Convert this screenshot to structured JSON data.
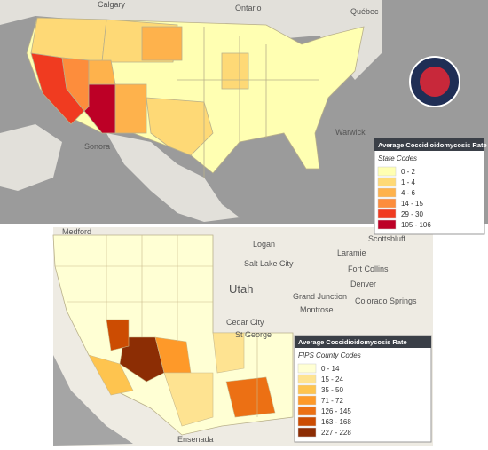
{
  "national_map": {
    "places": [
      "Calgary",
      "Ontario",
      "Québec",
      "Warwick",
      "Sonora"
    ],
    "legend": {
      "title": "Average Coccidioidomycosis Rate",
      "subtitle": "State Codes",
      "items": [
        {
          "label": "0 - 2",
          "color": "#ffffb2"
        },
        {
          "label": "1 - 4",
          "color": "#fed976"
        },
        {
          "label": "4 - 6",
          "color": "#feb24c"
        },
        {
          "label": "14 - 15",
          "color": "#fd8d3c"
        },
        {
          "label": "29 - 30",
          "color": "#f03b20"
        },
        {
          "label": "105 - 106",
          "color": "#bd0026"
        }
      ]
    }
  },
  "regional_map": {
    "places": [
      "Medford",
      "Scottsbluff",
      "Logan",
      "Laramie",
      "Salt Lake City",
      "Fort Collins",
      "Utah",
      "Denver",
      "Grand Junction",
      "Montrose",
      "Colorado Springs",
      "Cedar City",
      "St George",
      "Ensenada"
    ],
    "legend": {
      "title": "Average Coccidioidomycosis Rate",
      "subtitle": "FIPS County Codes",
      "items": [
        {
          "label": "0 - 14",
          "color": "#ffffd4"
        },
        {
          "label": "15 - 24",
          "color": "#fee391"
        },
        {
          "label": "35 - 50",
          "color": "#fec44f"
        },
        {
          "label": "71 - 72",
          "color": "#fe9929"
        },
        {
          "label": "126 - 145",
          "color": "#ec7014"
        },
        {
          "label": "163 - 168",
          "color": "#cc4c02"
        },
        {
          "label": "227 - 228",
          "color": "#8c2d04"
        }
      ]
    }
  }
}
